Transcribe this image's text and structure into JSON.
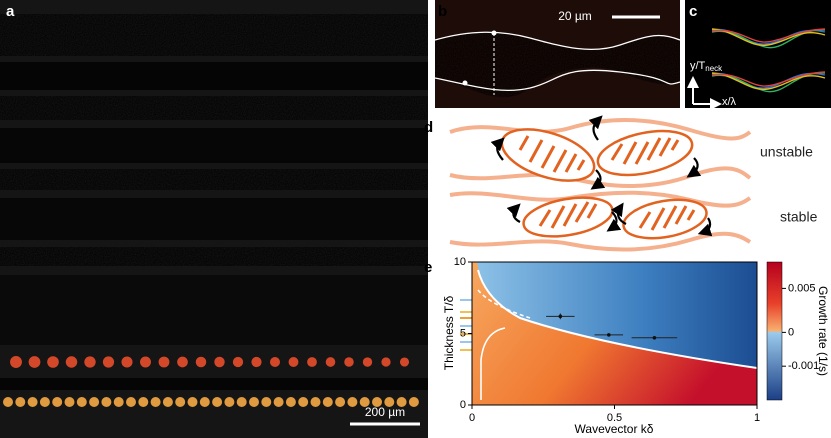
{
  "panels": {
    "a": {
      "letter": "a",
      "scale_bar": "200 µm"
    },
    "b": {
      "letter": "b",
      "scale_bar": "20 µm"
    },
    "c": {
      "letter": "c",
      "y_axis": "y/T",
      "y_axis_sub": "neck",
      "x_axis": "x/λ"
    },
    "d": {
      "letter": "d",
      "unstable": "unstable",
      "stable": "stable"
    },
    "e": {
      "letter": "e",
      "y_label": "Thickness T/δ",
      "x_label": "Wavevector kδ",
      "colorbar_label": "Growth rate (1/s)",
      "xlim": [
        0,
        1
      ],
      "ylim": [
        0,
        10
      ],
      "xticks": [
        0,
        0.5,
        1
      ],
      "yticks": [
        0,
        5,
        10
      ],
      "clim": [
        -0.002,
        0.008
      ],
      "cticks": [
        0.005,
        0,
        -0.001
      ],
      "points": [
        {
          "k": 0.31,
          "T": 6.2,
          "kerr": 0.05,
          "Terr": 0.2
        },
        {
          "k": 0.48,
          "T": 4.9,
          "kerr": 0.05,
          "Terr": 0.1
        },
        {
          "k": 0.64,
          "T": 4.7,
          "kerr": 0.08,
          "Terr": 0.1
        }
      ]
    }
  }
}
